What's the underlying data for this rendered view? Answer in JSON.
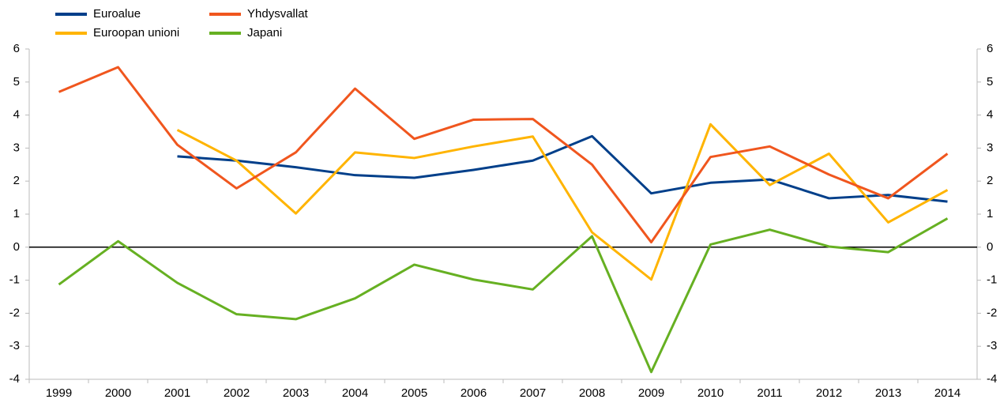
{
  "chart_data": {
    "type": "line",
    "categories": [
      "1999",
      "2000",
      "2001",
      "2002",
      "2003",
      "2004",
      "2005",
      "2006",
      "2007",
      "2008",
      "2009",
      "2010",
      "2011",
      "2012",
      "2013",
      "2014"
    ],
    "series": [
      {
        "name": "Euroalue",
        "color": "#003f8a",
        "values": [
          null,
          null,
          2.75,
          2.62,
          2.42,
          2.18,
          2.1,
          2.34,
          2.62,
          3.36,
          1.63,
          1.95,
          2.05,
          1.48,
          1.58,
          1.38
        ]
      },
      {
        "name": "Euroopan unioni",
        "color": "#ffb400",
        "values": [
          null,
          null,
          3.55,
          2.62,
          1.02,
          2.87,
          2.7,
          3.05,
          3.35,
          0.45,
          -0.98,
          3.72,
          1.88,
          2.83,
          0.75,
          1.73
        ]
      },
      {
        "name": "Yhdysvallat",
        "color": "#f0561e",
        "values": [
          4.7,
          5.45,
          3.1,
          1.78,
          2.87,
          4.8,
          3.28,
          3.86,
          3.88,
          2.5,
          0.15,
          2.73,
          3.05,
          2.2,
          1.48,
          2.83
        ]
      },
      {
        "name": "Japani",
        "color": "#66b022",
        "values": [
          -1.13,
          0.18,
          -1.08,
          -2.03,
          -2.18,
          -1.55,
          -0.53,
          -0.98,
          -1.28,
          0.33,
          -3.78,
          0.08,
          0.53,
          0.02,
          -0.15,
          0.87
        ]
      }
    ],
    "ylim": [
      -4,
      6
    ],
    "yticks": [
      -4,
      -3,
      -2,
      -1,
      0,
      1,
      2,
      3,
      4,
      5,
      6
    ],
    "y2lim": [
      -4,
      6
    ],
    "y2ticks": [
      -4,
      -3,
      -2,
      -1,
      0,
      1,
      2,
      3,
      4,
      5,
      6
    ],
    "grid": false
  }
}
